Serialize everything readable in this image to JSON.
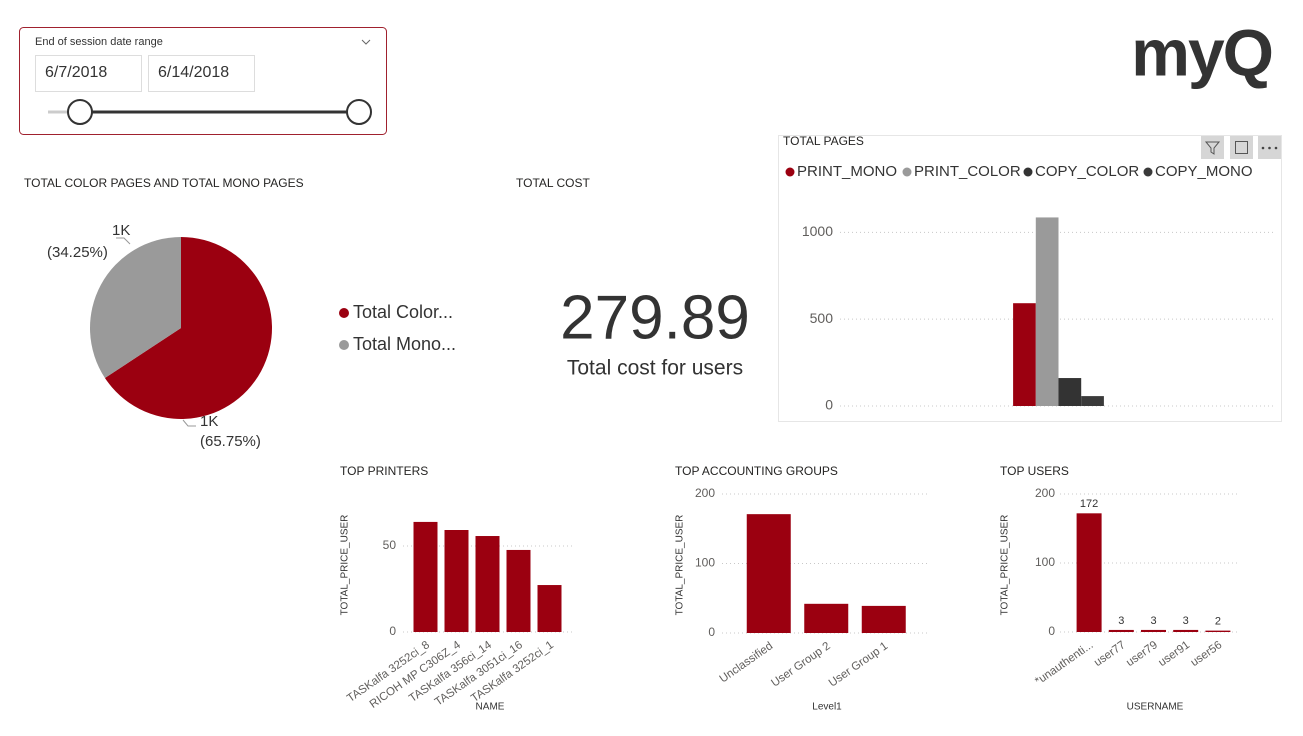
{
  "slicer": {
    "title": "End of session date range",
    "start": "6/7/2018",
    "end": "6/14/2018"
  },
  "logo": "myQ",
  "card": {
    "title": "TOTAL COST",
    "value": "279.89",
    "label": "Total cost for users"
  },
  "chart_data": [
    {
      "type": "pie",
      "title": "TOTAL COLOR PAGES AND TOTAL MONO PAGES",
      "categories": [
        "Total Color...",
        "Total Mono..."
      ],
      "values": [
        65.75,
        34.25
      ],
      "value_labels": [
        "(65.75%)",
        "(34.25%)"
      ],
      "count_labels": [
        "1K",
        "1K"
      ],
      "colors": [
        "#9b0010",
        "#9a9a9a"
      ]
    },
    {
      "type": "grouped-bar",
      "title": "TOTAL PAGES",
      "categories": [
        null
      ],
      "series": [
        {
          "name": "PRINT_MONO",
          "color": "#9b0010",
          "values": [
            592
          ]
        },
        {
          "name": "PRINT_COLOR",
          "color": "#9a9a9a",
          "values": [
            1086
          ]
        },
        {
          "name": "COPY_COLOR",
          "color": "#333333",
          "values": [
            161
          ]
        },
        {
          "name": "COPY_MONO",
          "color": "#3a3a3a",
          "values": [
            57
          ]
        }
      ],
      "ylim": [
        0,
        1100
      ],
      "yticks": [
        0,
        500,
        1000
      ],
      "grid": true
    },
    {
      "type": "bar",
      "title": "TOP PRINTERS",
      "xlabel": "NAME",
      "ylabel": "TOTAL_PRICE_USER",
      "categories": [
        "TASKalfa 3252ci_8",
        "RICOH MP C306Z_4",
        "TASKalfa 356ci_14",
        "TASKalfa 3051ci_16",
        "TASKalfa 3252ci_1"
      ],
      "values": [
        64,
        59.3,
        55.8,
        47.7,
        27.3
      ],
      "color": "#9b0010",
      "ylim": [
        0,
        70
      ],
      "yticks": [
        0,
        50
      ],
      "grid": true
    },
    {
      "type": "bar",
      "title": "TOP ACCOUNTING GROUPS",
      "xlabel": "Level1",
      "ylabel": "TOTAL_PRICE_USER",
      "categories": [
        "Unclassified",
        "User Group 2",
        "User Group 1"
      ],
      "values": [
        171,
        42,
        39
      ],
      "color": "#9b0010",
      "ylim": [
        0,
        200
      ],
      "yticks": [
        0,
        100,
        200
      ],
      "grid": true
    },
    {
      "type": "bar",
      "title": "TOP USERS",
      "xlabel": "USERNAME",
      "ylabel": "TOTAL_PRICE_USER",
      "categories": [
        "*unauthenti...",
        "user77",
        "user79",
        "user91",
        "user56"
      ],
      "values": [
        172,
        3,
        3,
        3,
        2
      ],
      "show_values": true,
      "color": "#9b0010",
      "ylim": [
        0,
        200
      ],
      "yticks": [
        0,
        100,
        200
      ],
      "grid": true
    }
  ]
}
